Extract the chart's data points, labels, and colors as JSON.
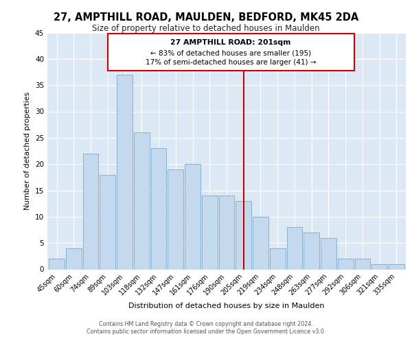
{
  "title": "27, AMPTHILL ROAD, MAULDEN, BEDFORD, MK45 2DA",
  "subtitle": "Size of property relative to detached houses in Maulden",
  "xlabel": "Distribution of detached houses by size in Maulden",
  "ylabel": "Number of detached properties",
  "bar_labels": [
    "45sqm",
    "60sqm",
    "74sqm",
    "89sqm",
    "103sqm",
    "118sqm",
    "132sqm",
    "147sqm",
    "161sqm",
    "176sqm",
    "190sqm",
    "205sqm",
    "219sqm",
    "234sqm",
    "248sqm",
    "263sqm",
    "277sqm",
    "292sqm",
    "306sqm",
    "321sqm",
    "335sqm"
  ],
  "bar_values": [
    2,
    4,
    22,
    18,
    37,
    26,
    23,
    19,
    20,
    14,
    14,
    13,
    10,
    4,
    8,
    7,
    6,
    2,
    2,
    1,
    1
  ],
  "bar_color": "#c5d9ee",
  "bar_edge_color": "#7aa8cc",
  "vline_color": "#cc0000",
  "annotation_title": "27 AMPTHILL ROAD: 201sqm",
  "annotation_line1": "← 83% of detached houses are smaller (195)",
  "annotation_line2": "17% of semi-detached houses are larger (41) →",
  "annotation_box_color": "#ffffff",
  "annotation_box_edge": "#cc0000",
  "ylim": [
    0,
    45
  ],
  "yticks": [
    0,
    5,
    10,
    15,
    20,
    25,
    30,
    35,
    40,
    45
  ],
  "background_color": "#dce9f5",
  "grid_color": "#ffffff",
  "footer1": "Contains HM Land Registry data © Crown copyright and database right 2024.",
  "footer2": "Contains public sector information licensed under the Open Government Licence v3.0."
}
